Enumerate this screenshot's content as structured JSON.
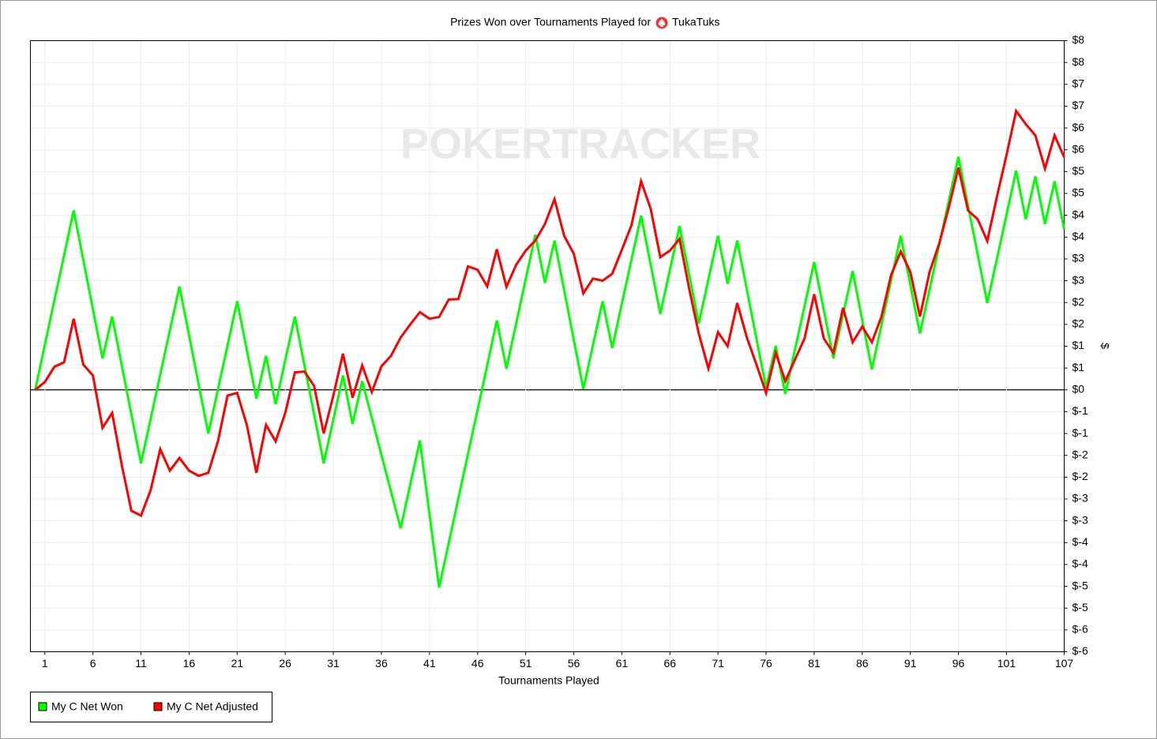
{
  "chart_data": {
    "type": "line",
    "title": "Prizes Won over Tournaments Played for",
    "player": "TukaTuks",
    "watermark": "POKERTRACKER",
    "x_label": "Tournaments Played",
    "y_label": "$",
    "x": [
      0,
      1,
      2,
      3,
      4,
      5,
      6,
      7,
      8,
      9,
      10,
      11,
      12,
      13,
      14,
      15,
      16,
      17,
      18,
      19,
      20,
      21,
      22,
      23,
      24,
      25,
      26,
      27,
      28,
      29,
      30,
      31,
      32,
      33,
      34,
      35,
      36,
      37,
      38,
      39,
      40,
      41,
      42,
      43,
      44,
      45,
      46,
      47,
      48,
      49,
      50,
      51,
      52,
      53,
      54,
      55,
      56,
      57,
      58,
      59,
      60,
      61,
      62,
      63,
      64,
      65,
      66,
      67,
      68,
      69,
      70,
      71,
      72,
      73,
      74,
      75,
      76,
      77,
      78,
      79,
      80,
      81,
      82,
      83,
      84,
      85,
      86,
      87,
      88,
      89,
      90,
      91,
      92,
      93,
      94,
      95,
      96,
      97,
      98,
      99,
      100,
      101,
      102,
      103,
      104,
      105,
      106,
      107
    ],
    "xlim": [
      -0.5,
      107
    ],
    "xticks": [
      1,
      6,
      11,
      16,
      21,
      26,
      31,
      36,
      41,
      46,
      51,
      56,
      61,
      66,
      71,
      76,
      81,
      86,
      91,
      96,
      101,
      107
    ],
    "ylim": [
      -6,
      8
    ],
    "yticks": [
      {
        "value": -6,
        "label": "$-6"
      },
      {
        "value": -5.5,
        "label": "$-6"
      },
      {
        "value": -5,
        "label": "$-5"
      },
      {
        "value": -4.5,
        "label": "$-5"
      },
      {
        "value": -4,
        "label": "$-4"
      },
      {
        "value": -3.5,
        "label": "$-4"
      },
      {
        "value": -3,
        "label": "$-3"
      },
      {
        "value": -2.5,
        "label": "$-3"
      },
      {
        "value": -2,
        "label": "$-2"
      },
      {
        "value": -1.5,
        "label": "$-2"
      },
      {
        "value": -1,
        "label": "$-1"
      },
      {
        "value": -0.5,
        "label": "$-1"
      },
      {
        "value": 0,
        "label": "$0"
      },
      {
        "value": 0.5,
        "label": "$1"
      },
      {
        "value": 1,
        "label": "$1"
      },
      {
        "value": 1.5,
        "label": "$2"
      },
      {
        "value": 2,
        "label": "$2"
      },
      {
        "value": 2.5,
        "label": "$3"
      },
      {
        "value": 3,
        "label": "$3"
      },
      {
        "value": 3.5,
        "label": "$4"
      },
      {
        "value": 4,
        "label": "$4"
      },
      {
        "value": 4.5,
        "label": "$5"
      },
      {
        "value": 5,
        "label": "$5"
      },
      {
        "value": 5.5,
        "label": "$6"
      },
      {
        "value": 6,
        "label": "$6"
      },
      {
        "value": 6.5,
        "label": "$7"
      },
      {
        "value": 7,
        "label": "$7"
      },
      {
        "value": 7.5,
        "label": "$8"
      },
      {
        "value": 8,
        "label": "$8"
      }
    ],
    "grid": true,
    "legend": "bottom-left",
    "series": [
      {
        "name": "My C Net Won",
        "color": "#00ff00",
        "values": [
          0,
          1.03,
          2.06,
          3.08,
          4.11,
          2.98,
          1.85,
          0.72,
          1.68,
          0.56,
          -0.56,
          -1.68,
          -0.67,
          0.35,
          1.36,
          2.37,
          1.25,
          0.12,
          -1.0,
          0.01,
          1.02,
          2.03,
          0.92,
          -0.2,
          0.78,
          -0.33,
          0.68,
          1.68,
          0.56,
          -0.56,
          -1.68,
          -0.68,
          0.33,
          -0.78,
          0.2,
          -0.64,
          -1.49,
          -2.33,
          -3.17,
          -2.17,
          -1.16,
          -2.85,
          -4.53,
          -3.51,
          -2.49,
          -1.47,
          -0.46,
          0.56,
          1.59,
          0.49,
          1.51,
          2.53,
          3.55,
          2.45,
          3.42,
          2.29,
          1.15,
          0.02,
          1.03,
          2.03,
          0.96,
          1.97,
          2.98,
          3.99,
          2.87,
          1.74,
          2.75,
          3.75,
          2.64,
          1.52,
          2.53,
          3.53,
          2.43,
          3.42,
          2.3,
          1.17,
          0.05,
          1.01,
          -0.09,
          0.92,
          1.92,
          2.93,
          1.83,
          0.72,
          1.72,
          2.72,
          1.6,
          0.47,
          1.49,
          2.51,
          3.53,
          2.41,
          1.29,
          2.3,
          3.32,
          4.33,
          5.34,
          4.22,
          3.11,
          1.99,
          3.0,
          4.01,
          5.02,
          3.91,
          4.89,
          3.8,
          4.78,
          3.68
        ]
      },
      {
        "name": "My C Net Adjusted",
        "color": "#ff0000",
        "values": [
          0,
          0.18,
          0.53,
          0.63,
          1.63,
          0.58,
          0.33,
          -0.87,
          -0.53,
          -1.72,
          -2.77,
          -2.88,
          -2.3,
          -1.36,
          -1.85,
          -1.56,
          -1.85,
          -1.97,
          -1.9,
          -1.18,
          -0.13,
          -0.07,
          -0.8,
          -1.9,
          -0.8,
          -1.18,
          -0.53,
          0.4,
          0.42,
          0.09,
          -1.0,
          -0.13,
          0.83,
          -0.18,
          0.56,
          -0.05,
          0.54,
          0.78,
          1.2,
          1.5,
          1.78,
          1.63,
          1.67,
          2.07,
          2.08,
          2.83,
          2.75,
          2.37,
          3.22,
          2.36,
          2.86,
          3.19,
          3.42,
          3.8,
          4.37,
          3.53,
          3.12,
          2.21,
          2.55,
          2.5,
          2.66,
          3.21,
          3.77,
          4.78,
          4.15,
          3.04,
          3.19,
          3.46,
          2.32,
          1.29,
          0.49,
          1.32,
          1.0,
          1.99,
          1.2,
          0.58,
          -0.07,
          0.85,
          0.2,
          0.69,
          1.18,
          2.19,
          1.18,
          0.85,
          1.88,
          1.09,
          1.45,
          1.09,
          1.68,
          2.63,
          3.17,
          2.7,
          1.68,
          2.7,
          3.35,
          4.18,
          5.09,
          4.11,
          3.91,
          3.41,
          4.42,
          5.38,
          6.39,
          6.09,
          5.83,
          5.07,
          5.83,
          5.33
        ]
      }
    ]
  }
}
